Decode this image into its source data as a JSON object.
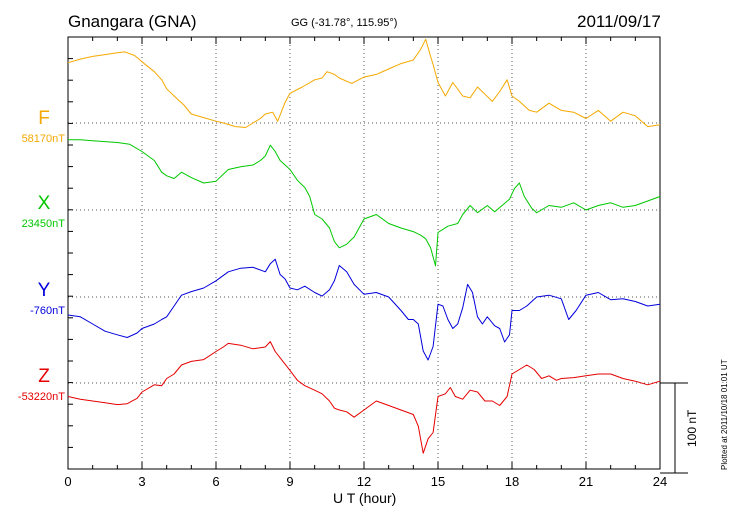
{
  "header": {
    "station": "Gnangara (GNA)",
    "coords": "GG (-31.78°, 115.95°)",
    "date": "2011/09/17"
  },
  "footer": {
    "plotted": "Plotted at 2011/10/18 01:01 UT",
    "scale_label": "100 nT"
  },
  "chart_data": {
    "type": "line",
    "title": "Gnangara (GNA)",
    "subtitle": "GG (-31.78°, 115.95°)",
    "xlabel": "U T (hour)",
    "ylabel": "",
    "xlim": [
      0,
      24
    ],
    "x_ticks": [
      "0",
      "3",
      "6",
      "9",
      "12",
      "15",
      "18",
      "21",
      "24"
    ],
    "grid": true,
    "grid_style": "dotted",
    "scale_bar_nT": 100,
    "series": [
      {
        "name": "F",
        "baseline_label": "58170nT",
        "baseline_nT": 58170,
        "color": "#f5a800",
        "points": [
          [
            0.0,
            67
          ],
          [
            0.5,
            71
          ],
          [
            1.0,
            74
          ],
          [
            1.5,
            76
          ],
          [
            2.0,
            78
          ],
          [
            2.3,
            79
          ],
          [
            2.7,
            75
          ],
          [
            3.0,
            68
          ],
          [
            3.5,
            57
          ],
          [
            3.8,
            48
          ],
          [
            4.0,
            38
          ],
          [
            4.3,
            30
          ],
          [
            4.7,
            20
          ],
          [
            5.0,
            10
          ],
          [
            5.5,
            6
          ],
          [
            6.0,
            2
          ],
          [
            6.3,
            0
          ],
          [
            6.8,
            -4
          ],
          [
            7.2,
            -5
          ],
          [
            7.5,
            0
          ],
          [
            7.8,
            5
          ],
          [
            8.0,
            10
          ],
          [
            8.3,
            12
          ],
          [
            8.5,
            2
          ],
          [
            8.8,
            23
          ],
          [
            9.0,
            33
          ],
          [
            9.5,
            40
          ],
          [
            10.0,
            48
          ],
          [
            10.3,
            50
          ],
          [
            10.5,
            57
          ],
          [
            10.8,
            54
          ],
          [
            11.0,
            50
          ],
          [
            11.5,
            44
          ],
          [
            12.0,
            51
          ],
          [
            12.5,
            54
          ],
          [
            13.0,
            60
          ],
          [
            13.5,
            66
          ],
          [
            14.0,
            70
          ],
          [
            14.3,
            82
          ],
          [
            14.5,
            93
          ],
          [
            14.7,
            74
          ],
          [
            14.8,
            65
          ],
          [
            15.0,
            45
          ],
          [
            15.3,
            30
          ],
          [
            15.6,
            45
          ],
          [
            16.0,
            30
          ],
          [
            16.3,
            28
          ],
          [
            16.6,
            40
          ],
          [
            16.9,
            32
          ],
          [
            17.2,
            24
          ],
          [
            17.5,
            35
          ],
          [
            17.8,
            48
          ],
          [
            18.0,
            30
          ],
          [
            18.3,
            24
          ],
          [
            18.7,
            14
          ],
          [
            19.0,
            12
          ],
          [
            19.5,
            22
          ],
          [
            20.0,
            14
          ],
          [
            20.5,
            12
          ],
          [
            21.0,
            5
          ],
          [
            21.5,
            14
          ],
          [
            22.0,
            2
          ],
          [
            22.5,
            12
          ],
          [
            23.0,
            8
          ],
          [
            23.5,
            -4
          ],
          [
            24.0,
            -2
          ]
        ]
      },
      {
        "name": "X",
        "baseline_label": "23450nT",
        "baseline_nT": 23450,
        "color": "#00c800",
        "points": [
          [
            0.0,
            78
          ],
          [
            0.5,
            78
          ],
          [
            1.0,
            77
          ],
          [
            1.5,
            76
          ],
          [
            2.0,
            75
          ],
          [
            2.5,
            73
          ],
          [
            3.0,
            65
          ],
          [
            3.5,
            55
          ],
          [
            3.8,
            42
          ],
          [
            4.0,
            38
          ],
          [
            4.3,
            35
          ],
          [
            4.6,
            42
          ],
          [
            5.0,
            36
          ],
          [
            5.5,
            30
          ],
          [
            6.0,
            32
          ],
          [
            6.5,
            45
          ],
          [
            7.0,
            48
          ],
          [
            7.5,
            50
          ],
          [
            7.8,
            55
          ],
          [
            8.0,
            60
          ],
          [
            8.2,
            72
          ],
          [
            8.4,
            65
          ],
          [
            8.6,
            55
          ],
          [
            9.0,
            45
          ],
          [
            9.3,
            33
          ],
          [
            9.6,
            25
          ],
          [
            9.8,
            15
          ],
          [
            10.0,
            -5
          ],
          [
            10.3,
            -10
          ],
          [
            10.6,
            -20
          ],
          [
            10.8,
            -35
          ],
          [
            11.0,
            -42
          ],
          [
            11.3,
            -38
          ],
          [
            11.6,
            -30
          ],
          [
            12.0,
            -10
          ],
          [
            12.5,
            -5
          ],
          [
            13.0,
            -15
          ],
          [
            13.5,
            -20
          ],
          [
            14.0,
            -24
          ],
          [
            14.3,
            -28
          ],
          [
            14.5,
            -32
          ],
          [
            14.7,
            -42
          ],
          [
            14.9,
            -62
          ],
          [
            15.0,
            -25
          ],
          [
            15.4,
            -18
          ],
          [
            15.8,
            -15
          ],
          [
            16.0,
            -5
          ],
          [
            16.3,
            5
          ],
          [
            16.6,
            -3
          ],
          [
            17.0,
            5
          ],
          [
            17.3,
            -2
          ],
          [
            17.6,
            5
          ],
          [
            17.9,
            12
          ],
          [
            18.1,
            24
          ],
          [
            18.3,
            30
          ],
          [
            18.5,
            15
          ],
          [
            18.8,
            2
          ],
          [
            19.0,
            -3
          ],
          [
            19.5,
            5
          ],
          [
            20.0,
            3
          ],
          [
            20.5,
            8
          ],
          [
            21.0,
            0
          ],
          [
            21.5,
            5
          ],
          [
            22.0,
            8
          ],
          [
            22.5,
            3
          ],
          [
            23.0,
            5
          ],
          [
            23.5,
            10
          ],
          [
            24.0,
            15
          ]
        ]
      },
      {
        "name": "Y",
        "baseline_label": "-760nT",
        "baseline_nT": -760,
        "color": "#0000dc",
        "points": [
          [
            0.0,
            -20
          ],
          [
            0.5,
            -22
          ],
          [
            1.0,
            -30
          ],
          [
            1.5,
            -38
          ],
          [
            2.0,
            -42
          ],
          [
            2.4,
            -45
          ],
          [
            2.8,
            -40
          ],
          [
            3.0,
            -35
          ],
          [
            3.5,
            -30
          ],
          [
            3.8,
            -25
          ],
          [
            4.0,
            -22
          ],
          [
            4.3,
            -10
          ],
          [
            4.6,
            2
          ],
          [
            5.0,
            6
          ],
          [
            5.5,
            10
          ],
          [
            6.0,
            18
          ],
          [
            6.5,
            28
          ],
          [
            7.0,
            32
          ],
          [
            7.5,
            33
          ],
          [
            8.0,
            28
          ],
          [
            8.2,
            37
          ],
          [
            8.4,
            42
          ],
          [
            8.6,
            25
          ],
          [
            8.8,
            20
          ],
          [
            9.0,
            10
          ],
          [
            9.3,
            8
          ],
          [
            9.6,
            12
          ],
          [
            10.0,
            5
          ],
          [
            10.3,
            1
          ],
          [
            10.6,
            8
          ],
          [
            10.8,
            18
          ],
          [
            11.0,
            35
          ],
          [
            11.3,
            28
          ],
          [
            11.6,
            14
          ],
          [
            12.0,
            3
          ],
          [
            12.5,
            5
          ],
          [
            13.0,
            0
          ],
          [
            13.5,
            -15
          ],
          [
            13.8,
            -25
          ],
          [
            14.0,
            -25
          ],
          [
            14.2,
            -30
          ],
          [
            14.4,
            -60
          ],
          [
            14.6,
            -70
          ],
          [
            14.8,
            -55
          ],
          [
            15.0,
            -8
          ],
          [
            15.2,
            -10
          ],
          [
            15.4,
            -25
          ],
          [
            15.6,
            -35
          ],
          [
            15.8,
            -30
          ],
          [
            16.0,
            -12
          ],
          [
            16.2,
            14
          ],
          [
            16.4,
            5
          ],
          [
            16.6,
            -22
          ],
          [
            16.8,
            -30
          ],
          [
            17.0,
            -22
          ],
          [
            17.3,
            -32
          ],
          [
            17.5,
            -35
          ],
          [
            17.7,
            -50
          ],
          [
            17.9,
            -42
          ],
          [
            18.0,
            -15
          ],
          [
            18.3,
            -15
          ],
          [
            18.6,
            -10
          ],
          [
            19.0,
            0
          ],
          [
            19.5,
            2
          ],
          [
            20.0,
            -2
          ],
          [
            20.3,
            -25
          ],
          [
            20.6,
            -15
          ],
          [
            21.0,
            2
          ],
          [
            21.5,
            5
          ],
          [
            22.0,
            -3
          ],
          [
            22.5,
            -2
          ],
          [
            23.0,
            -5
          ],
          [
            23.5,
            -10
          ],
          [
            24.0,
            -8
          ]
        ]
      },
      {
        "name": "Z",
        "baseline_label": "-53220nT",
        "baseline_nT": -53220,
        "color": "#e60000",
        "points": [
          [
            0.0,
            -15
          ],
          [
            0.5,
            -18
          ],
          [
            1.0,
            -20
          ],
          [
            1.5,
            -22
          ],
          [
            2.0,
            -24
          ],
          [
            2.4,
            -23
          ],
          [
            2.8,
            -17
          ],
          [
            3.0,
            -10
          ],
          [
            3.5,
            -2
          ],
          [
            3.8,
            -3
          ],
          [
            4.0,
            5
          ],
          [
            4.3,
            10
          ],
          [
            4.6,
            20
          ],
          [
            5.0,
            24
          ],
          [
            5.5,
            26
          ],
          [
            6.0,
            35
          ],
          [
            6.3,
            40
          ],
          [
            6.5,
            44
          ],
          [
            7.0,
            42
          ],
          [
            7.5,
            38
          ],
          [
            8.0,
            40
          ],
          [
            8.2,
            46
          ],
          [
            8.4,
            35
          ],
          [
            8.6,
            28
          ],
          [
            9.0,
            14
          ],
          [
            9.3,
            3
          ],
          [
            9.6,
            -3
          ],
          [
            10.0,
            -8
          ],
          [
            10.3,
            -12
          ],
          [
            10.6,
            -20
          ],
          [
            10.8,
            -28
          ],
          [
            11.0,
            -30
          ],
          [
            11.3,
            -32
          ],
          [
            11.6,
            -38
          ],
          [
            12.0,
            -30
          ],
          [
            12.5,
            -20
          ],
          [
            13.0,
            -25
          ],
          [
            13.5,
            -30
          ],
          [
            14.0,
            -35
          ],
          [
            14.2,
            -48
          ],
          [
            14.4,
            -78
          ],
          [
            14.6,
            -62
          ],
          [
            14.8,
            -55
          ],
          [
            15.0,
            -15
          ],
          [
            15.3,
            -12
          ],
          [
            15.5,
            -5
          ],
          [
            15.7,
            -15
          ],
          [
            16.0,
            -18
          ],
          [
            16.3,
            -8
          ],
          [
            16.6,
            -10
          ],
          [
            16.9,
            -20
          ],
          [
            17.2,
            -20
          ],
          [
            17.5,
            -25
          ],
          [
            17.8,
            -15
          ],
          [
            18.0,
            10
          ],
          [
            18.3,
            15
          ],
          [
            18.6,
            20
          ],
          [
            18.9,
            15
          ],
          [
            19.2,
            5
          ],
          [
            19.5,
            8
          ],
          [
            19.8,
            3
          ],
          [
            20.0,
            5
          ],
          [
            20.5,
            6
          ],
          [
            21.0,
            8
          ],
          [
            21.5,
            10
          ],
          [
            22.0,
            10
          ],
          [
            22.5,
            5
          ],
          [
            23.0,
            2
          ],
          [
            23.5,
            -2
          ],
          [
            24.0,
            2
          ]
        ]
      }
    ]
  }
}
